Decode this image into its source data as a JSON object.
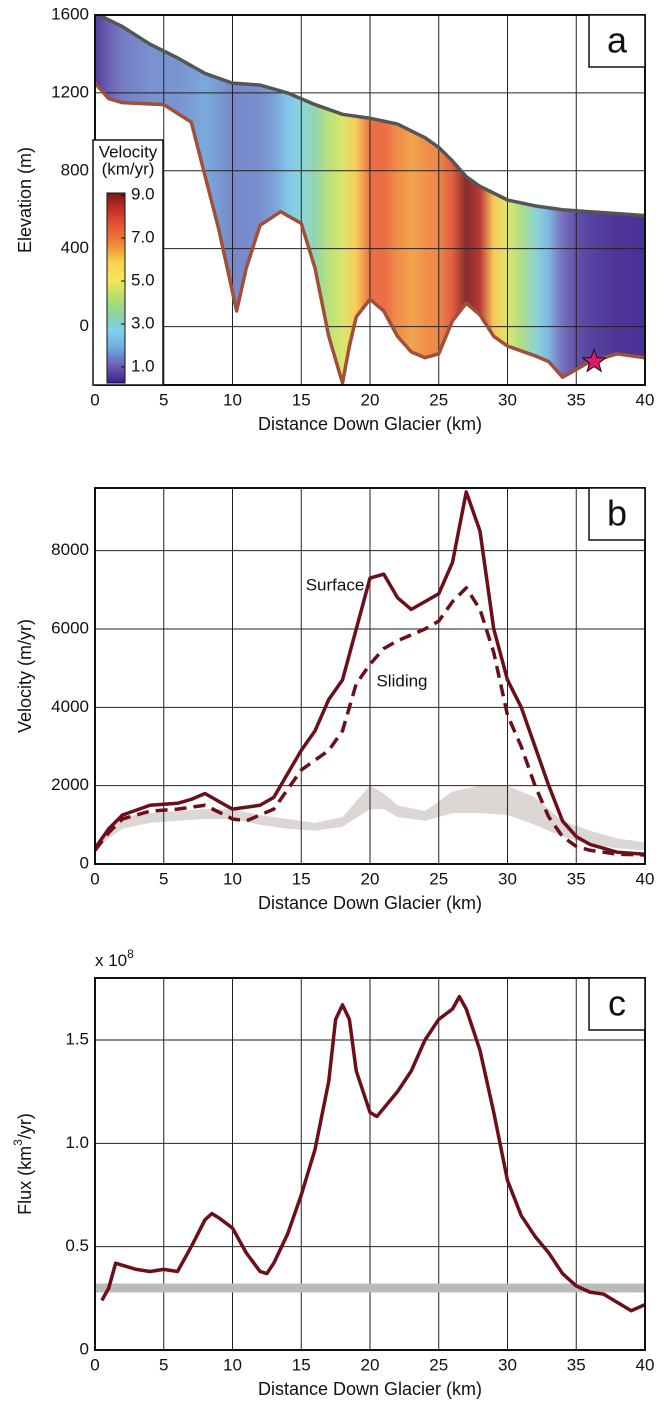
{
  "chart_data": [
    {
      "type": "profile",
      "panel_label": "a",
      "xlabel": "Distance Down Glacier (km)",
      "ylabel": "Elevation (m)",
      "xlim": [
        0,
        40
      ],
      "ylim": [
        -300,
        1600
      ],
      "xticks": [
        0,
        5,
        10,
        15,
        20,
        25,
        30,
        35,
        40
      ],
      "yticks": [
        0,
        400,
        800,
        1200,
        1600
      ],
      "grid": true,
      "series": [
        {
          "color": "#555555",
          "x": [
            0,
            2,
            4,
            6,
            8,
            10,
            12,
            14,
            16,
            18,
            20,
            22,
            24,
            25,
            26,
            27,
            28,
            30,
            32,
            34,
            36,
            38,
            40
          ],
          "values": [
            1610,
            1540,
            1450,
            1380,
            1300,
            1250,
            1240,
            1200,
            1140,
            1090,
            1070,
            1040,
            970,
            920,
            850,
            770,
            720,
            650,
            620,
            600,
            590,
            580,
            570
          ]
        },
        {
          "color": "#a0503a",
          "x": [
            0,
            1,
            2,
            5,
            7,
            9,
            10.3,
            11,
            12,
            13.5,
            15,
            16,
            17,
            18,
            18.5,
            19,
            20,
            21,
            22,
            23,
            24,
            25,
            26,
            27,
            28,
            29,
            30,
            32,
            33,
            34,
            35,
            36,
            38,
            40
          ],
          "values": [
            1250,
            1170,
            1150,
            1140,
            1050,
            500,
            80,
            300,
            520,
            590,
            530,
            300,
            -50,
            -290,
            -100,
            50,
            140,
            80,
            -50,
            -130,
            -160,
            -140,
            30,
            120,
            60,
            -50,
            -100,
            -150,
            -180,
            -260,
            -220,
            -180,
            -140,
            -160
          ]
        }
      ],
      "marker": {
        "x": 36.3,
        "y": -180,
        "color": "#e0186a"
      },
      "colorbar": {
        "title": [
          "Velocity",
          "(km/yr)"
        ],
        "clim": [
          0.25,
          9.1
        ],
        "ticks": [
          {
            "value": 1,
            "label": "1.0"
          },
          {
            "value": 3,
            "label": "3.0"
          },
          {
            "value": 5,
            "label": "5.0"
          },
          {
            "value": 7,
            "label": "7.0"
          },
          {
            "value": 9,
            "label": "9.0"
          }
        ],
        "colormap": [
          "#3b1f8c",
          "#6a5fb5",
          "#6fa8dc",
          "#7ed3ef",
          "#8cd1a0",
          "#b8e06a",
          "#f7e65a",
          "#f7d24a",
          "#ef8a3a",
          "#e85a35",
          "#c8302a",
          "#7a1a1a"
        ]
      }
    },
    {
      "type": "line",
      "panel_label": "b",
      "xlabel": "Distance Down Glacier (km)",
      "ylabel": "Velocity (m/yr)",
      "xlim": [
        0,
        40
      ],
      "ylim": [
        0,
        9600
      ],
      "xticks": [
        0,
        5,
        10,
        15,
        20,
        25,
        30,
        35,
        40
      ],
      "yticks": [
        0,
        2000,
        4000,
        6000,
        8000
      ],
      "grid": true,
      "band": {
        "color": "#dcd7d5",
        "x": [
          0,
          2,
          4,
          6,
          8,
          10,
          12,
          14,
          16,
          18,
          20,
          21,
          22,
          24,
          26,
          28,
          30,
          32,
          34,
          36,
          38,
          40
        ],
        "lower": [
          400,
          900,
          1050,
          1100,
          1150,
          1150,
          1000,
          900,
          850,
          950,
          1400,
          1400,
          1200,
          1100,
          1300,
          1300,
          1250,
          1000,
          700,
          500,
          400,
          350
        ],
        "upper": [
          500,
          1200,
          1300,
          1350,
          1400,
          1400,
          1250,
          1150,
          1050,
          1200,
          2000,
          1800,
          1500,
          1350,
          1850,
          2000,
          2000,
          1700,
          1100,
          850,
          650,
          550
        ]
      },
      "series": [
        {
          "name": "Surface",
          "color": "#6b0f1a",
          "dashed": false,
          "x": [
            0,
            1,
            2,
            4,
            6,
            7,
            8,
            9,
            10,
            12,
            13,
            14,
            15,
            16,
            17,
            18,
            19,
            20,
            21,
            22,
            23,
            24,
            25,
            26,
            27,
            28,
            29,
            30,
            31,
            32,
            33,
            34,
            35,
            36,
            38,
            40
          ],
          "values": [
            400,
            900,
            1250,
            1500,
            1550,
            1650,
            1800,
            1600,
            1400,
            1500,
            1700,
            2300,
            2900,
            3400,
            4200,
            4700,
            6000,
            7300,
            7400,
            6800,
            6500,
            6700,
            6900,
            7700,
            9500,
            8500,
            6000,
            4700,
            4000,
            3000,
            2000,
            1100,
            700,
            500,
            300,
            250
          ]
        },
        {
          "name": "Sliding",
          "color": "#6b0f1a",
          "dashed": true,
          "x": [
            0,
            1,
            2,
            4,
            6,
            8,
            10,
            11,
            12,
            13,
            14,
            15,
            16,
            17,
            18,
            19,
            20,
            21,
            22,
            24,
            25,
            26,
            27,
            28,
            29,
            30,
            31,
            32,
            33,
            34,
            35,
            36,
            38,
            40
          ],
          "values": [
            350,
            800,
            1150,
            1350,
            1400,
            1500,
            1150,
            1100,
            1250,
            1400,
            1900,
            2400,
            2650,
            2900,
            3400,
            4600,
            5100,
            5500,
            5700,
            6000,
            6200,
            6700,
            7050,
            6500,
            5400,
            3800,
            3000,
            2000,
            1200,
            700,
            450,
            350,
            250,
            230
          ]
        }
      ]
    },
    {
      "type": "line",
      "panel_label": "c",
      "xlabel": "Distance Down Glacier (km)",
      "ylabel": [
        "Flux (km",
        "3",
        "/yr)"
      ],
      "y_scale": [
        "x 10",
        "8"
      ],
      "xlim": [
        0,
        40
      ],
      "ylim": [
        0,
        1.8
      ],
      "xticks": [
        0,
        5,
        10,
        15,
        20,
        25,
        30,
        35,
        40
      ],
      "yticks": [
        0,
        0.5,
        {
          "value": 1,
          "label": "1.0"
        },
        1.5
      ],
      "grid": true,
      "reference": {
        "color": "#bbbbbb",
        "x": [
          0,
          40
        ],
        "values": [
          0.3,
          0.3
        ]
      },
      "series": [
        {
          "color": "#6b0f1a",
          "dashed": false,
          "x": [
            0.5,
            1,
            1.5,
            2,
            3,
            4,
            5,
            6,
            7,
            8,
            8.5,
            9,
            10,
            11,
            12,
            12.5,
            13,
            14,
            15,
            16,
            17,
            17.5,
            18,
            18.5,
            19,
            20,
            20.5,
            21,
            22,
            23,
            24,
            25,
            26,
            26.5,
            27,
            28,
            29,
            30,
            31,
            32,
            33,
            34,
            35,
            36,
            37,
            38,
            39,
            40
          ],
          "values": [
            0.24,
            0.3,
            0.42,
            0.41,
            0.39,
            0.38,
            0.39,
            0.38,
            0.5,
            0.63,
            0.66,
            0.64,
            0.59,
            0.47,
            0.38,
            0.37,
            0.42,
            0.56,
            0.75,
            0.97,
            1.3,
            1.6,
            1.67,
            1.6,
            1.35,
            1.15,
            1.13,
            1.17,
            1.25,
            1.35,
            1.5,
            1.6,
            1.65,
            1.71,
            1.65,
            1.45,
            1.15,
            0.82,
            0.65,
            0.55,
            0.47,
            0.37,
            0.31,
            0.28,
            0.27,
            0.23,
            0.19,
            0.22
          ]
        }
      ]
    }
  ]
}
